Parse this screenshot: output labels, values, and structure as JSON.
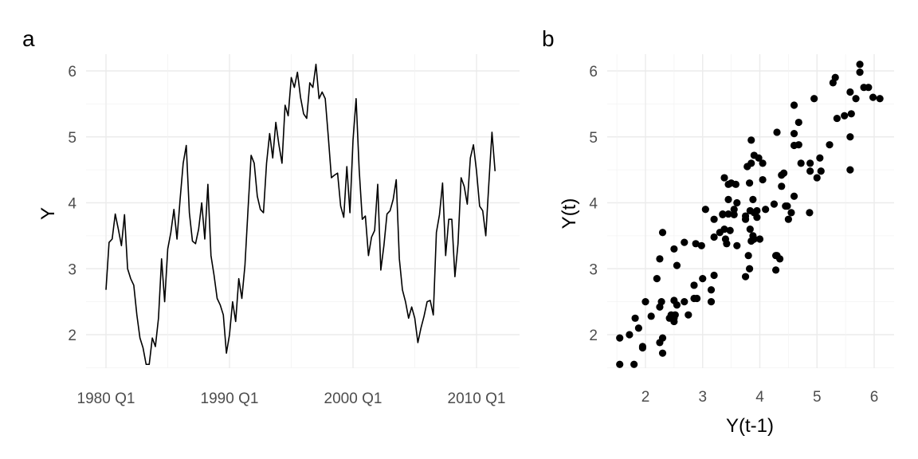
{
  "chart_data": [
    {
      "panel": "a",
      "type": "line",
      "title": "",
      "xlabel": "",
      "ylabel": "Y",
      "grid": true,
      "legend": "none",
      "line_color": "#000000",
      "x_start": "1980 Q1",
      "frequency": "quarterly",
      "xticks": [
        "1980 Q1",
        "1990 Q1",
        "2000 Q1",
        "2010 Q1"
      ],
      "yticks": [
        2,
        3,
        4,
        5,
        6
      ],
      "ylim": [
        1.4,
        6.3
      ],
      "y": [
        2.68,
        3.4,
        3.45,
        3.83,
        3.6,
        3.35,
        3.82,
        3.0,
        2.85,
        2.75,
        2.3,
        1.95,
        1.8,
        1.55,
        1.55,
        1.95,
        1.82,
        2.25,
        3.15,
        2.5,
        3.3,
        3.55,
        3.9,
        3.45,
        4.05,
        4.6,
        4.87,
        3.85,
        3.42,
        3.38,
        3.6,
        4.0,
        3.45,
        4.28,
        3.2,
        2.9,
        2.55,
        2.45,
        2.3,
        1.72,
        2.0,
        2.5,
        2.2,
        2.85,
        2.55,
        3.05,
        3.9,
        4.72,
        4.6,
        4.1,
        3.9,
        3.85,
        4.6,
        5.05,
        4.68,
        5.22,
        4.88,
        4.6,
        5.48,
        5.32,
        5.9,
        5.75,
        5.98,
        5.6,
        5.35,
        5.28,
        5.82,
        5.75,
        6.1,
        5.58,
        5.68,
        5.58,
        5.0,
        4.38,
        4.42,
        4.45,
        3.95,
        3.78,
        4.55,
        3.85,
        4.95,
        5.58,
        4.5,
        3.75,
        3.8,
        3.2,
        3.48,
        3.58,
        4.28,
        2.98,
        3.35,
        3.83,
        3.88,
        4.05,
        4.35,
        3.15,
        2.68,
        2.5,
        2.25,
        2.42,
        2.25,
        1.88,
        2.1,
        2.28,
        2.5,
        2.52,
        2.3,
        3.55,
        3.82,
        4.3,
        3.2,
        3.75,
        3.75,
        2.88,
        3.38,
        4.38,
        4.25,
        3.98,
        4.68,
        4.88,
        4.48,
        3.95,
        3.88,
        3.5,
        4.3,
        5.07,
        4.48
      ]
    },
    {
      "panel": "b",
      "type": "scatter",
      "title": "",
      "xlabel": "Y(t-1)",
      "ylabel": "Y(t)",
      "grid": true,
      "legend": "none",
      "point_color": "#000000",
      "derived_from": "lag-1 pairs of panel a series (x = Y(t-1), y = Y(t))",
      "xticks": [
        2,
        3,
        4,
        5,
        6
      ],
      "yticks": [
        2,
        3,
        4,
        5,
        6
      ],
      "xlim": [
        1.4,
        6.3
      ],
      "ylim": [
        1.4,
        6.3
      ]
    }
  ]
}
